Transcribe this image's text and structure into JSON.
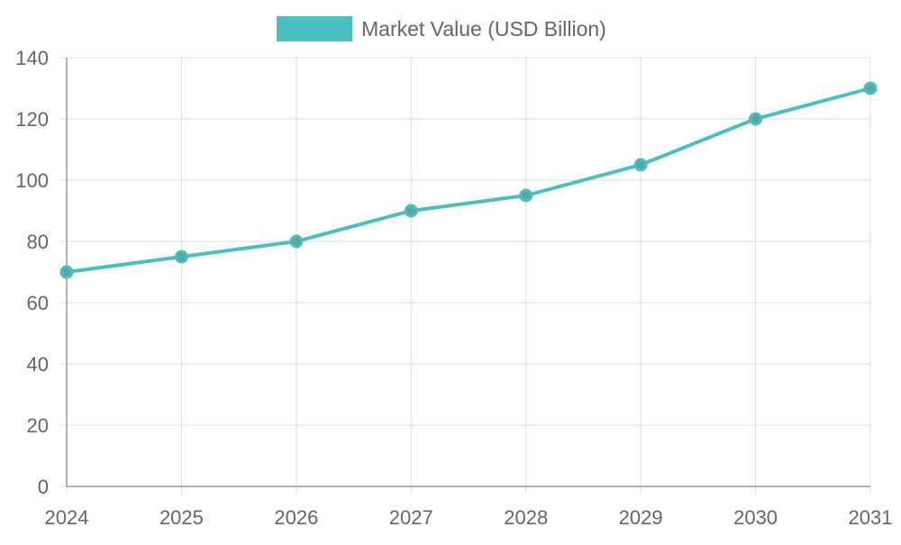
{
  "legend": {
    "label": "Market Value (USD Billion)"
  },
  "colors": {
    "series": "#4bbfbf",
    "grid": "#dddddd",
    "axis": "#999999",
    "text": "#666666"
  },
  "chart_data": {
    "type": "line",
    "title": "",
    "xlabel": "",
    "ylabel": "",
    "categories": [
      "2024",
      "2025",
      "2026",
      "2027",
      "2028",
      "2029",
      "2030",
      "2031"
    ],
    "series": [
      {
        "name": "Market Value (USD Billion)",
        "values": [
          70,
          75,
          80,
          90,
          95,
          105,
          120,
          130
        ]
      }
    ],
    "ylim": [
      0,
      140
    ],
    "yticks": [
      0,
      20,
      40,
      60,
      80,
      100,
      120,
      140
    ],
    "grid": true,
    "legend_position": "top-center"
  }
}
